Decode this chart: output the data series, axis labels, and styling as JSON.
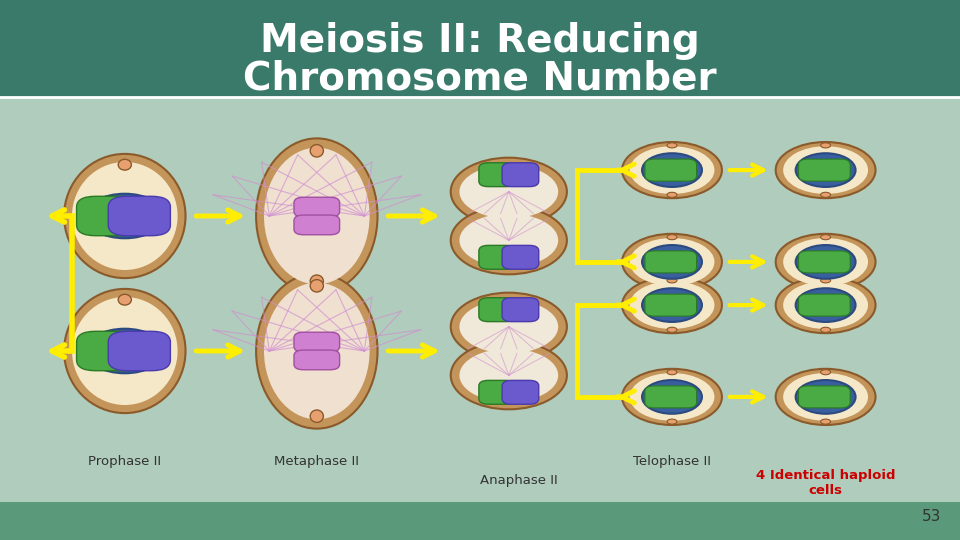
{
  "title_line1": "Meiosis II: Reducing",
  "title_line2": "Chromosome Number",
  "labels": {
    "prophase": "Prophase II",
    "metaphase": "Metaphase II",
    "anaphase": "Anaphase II",
    "telophase": "Telophase II",
    "result": "4 Identical haploid\ncells"
  },
  "page_number": "53",
  "title_color": "#ffffff",
  "label_color": "#333333",
  "result_color": "#cc0000",
  "arrow_color": "#ffee00",
  "cell_outer_color": "#c4955a",
  "cell_outer_edge": "#8b5a2b",
  "cell_inner_color": "#f5e8c8",
  "nucleus_color": "#3a5fa0",
  "nucleus_edge": "#2a4a80",
  "chrom_green": "#4aaa44",
  "chrom_green_edge": "#2a7a24",
  "chrom_purple": "#6a5acd",
  "chrom_purple_edge": "#4a3aad",
  "spindle_color": "#d090d0",
  "tag_color": "#e8a070"
}
